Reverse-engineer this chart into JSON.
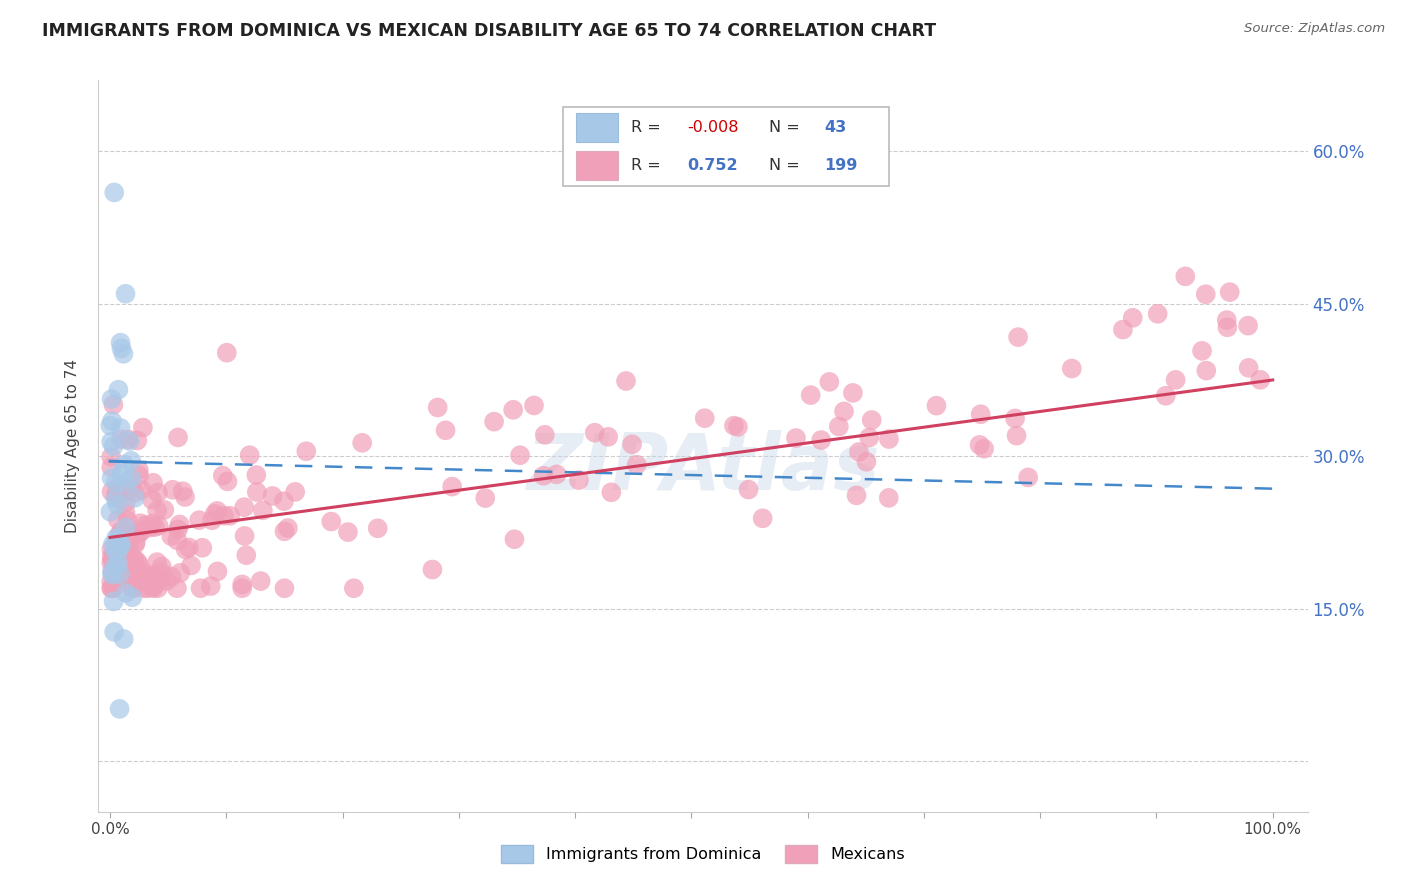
{
  "title": "IMMIGRANTS FROM DOMINICA VS MEXICAN DISABILITY AGE 65 TO 74 CORRELATION CHART",
  "source": "Source: ZipAtlas.com",
  "ylabel": "Disability Age 65 to 74",
  "xlim": [
    -0.01,
    1.03
  ],
  "ylim": [
    -0.05,
    0.67
  ],
  "x_tick_positions": [
    0.0,
    0.1,
    0.2,
    0.3,
    0.4,
    0.5,
    0.6,
    0.7,
    0.8,
    0.9,
    1.0
  ],
  "x_tick_labels": [
    "0.0%",
    "",
    "",
    "",
    "",
    "",
    "",
    "",
    "",
    "",
    "100.0%"
  ],
  "y_tick_positions": [
    0.0,
    0.15,
    0.3,
    0.45,
    0.6
  ],
  "y_tick_labels_right": [
    "",
    "15.0%",
    "30.0%",
    "45.0%",
    "60.0%"
  ],
  "blue_color": "#a8c8e8",
  "blue_line_color": "#4488cc",
  "pink_color": "#f0a0b8",
  "pink_line_color": "#d04060",
  "grid_color": "#cccccc",
  "blue_R": "-0.008",
  "blue_N": "43",
  "pink_R": "0.752",
  "pink_N": "199",
  "watermark": "ZIPAtlas",
  "legend_blue_label": "Immigrants from Dominica",
  "legend_pink_label": "Mexicans",
  "blue_line_x": [
    0.0,
    0.03,
    1.0
  ],
  "blue_line_y": [
    0.295,
    0.294,
    0.268
  ],
  "pink_line_x": [
    0.0,
    1.0
  ],
  "pink_line_y": [
    0.22,
    0.375
  ]
}
